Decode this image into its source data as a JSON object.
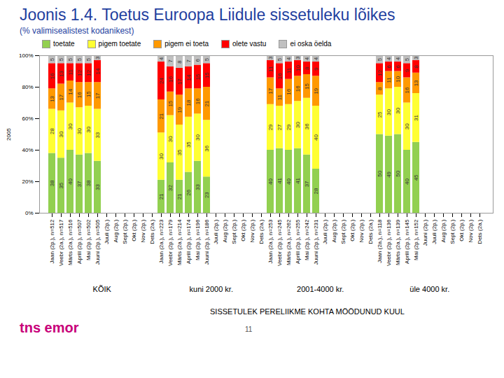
{
  "chart_data": {
    "type": "bar",
    "title": "Joonis 1.4. Toetus Euroopa Liidule sissetuleku lõikes",
    "subtitle": "(% valimisealistest kodanikest)",
    "ylabel": "2005",
    "xlabel": "SISSETULEK PERELIIKME KOHTA MÖÖDUNUD KUUL",
    "group_labels": [
      "KÕIK",
      "kuni 2000 kr.",
      "2001-4000 kr.",
      "üle 4000 kr."
    ],
    "categories": [
      "Jaan (2p.), n=512",
      "Veebr (2a.), n=517",
      "Märts (2a.), n=516",
      "Aprill (2p.), n=507",
      "Mai (2p.), n=502",
      "Juuni (2p.), n=505",
      "Juuli (2p.)",
      "Aug (2p.)",
      "Sept (2p.)",
      "Okt (2p.)",
      "Nov (2p.)",
      "Dets (2a.)",
      "Jaan (2a.), n=223",
      "Veebr (2p.), n=179",
      "Märts (2a.), n=214",
      "Aprill (2p.), n=174",
      "Mai (2p.), n=196",
      "Juuni (2p.), n=186",
      "Juuli (2p.)",
      "Aug (2p.)",
      "Sept (2p.)",
      "Okt (2p.)",
      "Nov (2p.)",
      "Dets (2a.)",
      "Jaan (2a.), n=253",
      "Veebr (2p.), n=245",
      "Märts (2a.), n=262",
      "Aprill (2p.), n=255",
      "Mai (2p.), n=242",
      "Juuni (2p.), n=231",
      "Juuli (2p.)",
      "Aug (2p.)",
      "Sept (2p.)",
      "Okt (2p.)",
      "Nov (2p.)",
      "Dets (2a.)",
      "Jaan (2a.), n=118",
      "Veebr (2p.), n=136",
      "Märts (2a.), n=139",
      "Aprill (2p.), n=145",
      "Mai (2p.), n=152",
      "Juuni (2p.)",
      "Juuli (2p.)",
      "Aug (2p.)",
      "Sept (2p.)",
      "Okt (2p.)",
      "Nov (2p.)",
      "Dets (2a.)"
    ],
    "series": [
      {
        "name": "toetate",
        "color": "#92d050",
        "values": [
          38,
          35,
          40,
          37,
          38,
          33,
          null,
          null,
          null,
          null,
          null,
          null,
          21,
          32,
          21,
          26,
          33,
          23,
          null,
          null,
          null,
          null,
          null,
          null,
          40,
          41,
          40,
          41,
          37,
          28,
          null,
          null,
          null,
          null,
          null,
          null,
          50,
          49,
          50,
          40,
          45,
          null,
          null,
          null,
          null,
          null,
          null,
          null
        ]
      },
      {
        "name": "pigem toetate",
        "color": "#ffff33",
        "values": [
          28,
          30,
          30,
          30,
          30,
          33,
          null,
          null,
          null,
          null,
          null,
          null,
          30,
          30,
          35,
          35,
          30,
          36,
          null,
          null,
          null,
          null,
          null,
          null,
          29,
          27,
          29,
          30,
          36,
          40,
          null,
          null,
          null,
          null,
          null,
          null,
          25,
          30,
          30,
          30,
          31,
          null,
          null,
          null,
          null,
          null,
          null,
          null
        ]
      },
      {
        "name": "pigem ei toeta",
        "color": "#ff9900",
        "values": [
          13,
          17,
          14,
          16,
          15,
          17,
          null,
          null,
          null,
          null,
          null,
          null,
          21,
          15,
          19,
          18,
          16,
          21,
          null,
          null,
          null,
          null,
          null,
          null,
          17,
          11,
          16,
          16,
          15,
          19,
          null,
          null,
          null,
          null,
          null,
          null,
          8,
          11,
          10,
          16,
          13,
          null,
          null,
          null,
          null,
          null,
          null,
          null
        ]
      },
      {
        "name": "olete vastu",
        "color": "#ff0000",
        "values": [
          16,
          13,
          11,
          12,
          12,
          14,
          null,
          null,
          null,
          null,
          null,
          null,
          24,
          16,
          17,
          14,
          15,
          15,
          null,
          null,
          null,
          null,
          null,
          null,
          11,
          16,
          11,
          10,
          8,
          9,
          null,
          null,
          null,
          null,
          null,
          null,
          12,
          6,
          6,
          9,
          8,
          null,
          null,
          null,
          null,
          null,
          null,
          null
        ]
      },
      {
        "name": "ei oska öelda",
        "color": "#c0c0c0",
        "values": [
          5,
          5,
          5,
          5,
          5,
          3,
          null,
          null,
          null,
          null,
          null,
          null,
          4,
          7,
          8,
          7,
          6,
          5,
          null,
          null,
          null,
          null,
          null,
          null,
          3,
          5,
          4,
          3,
          4,
          4,
          null,
          null,
          null,
          null,
          null,
          null,
          5,
          4,
          4,
          5,
          3,
          null,
          null,
          null,
          null,
          null,
          null,
          null
        ]
      }
    ],
    "ylim": [
      0,
      100
    ],
    "yticks": [
      {
        "value": 0,
        "label": "0%"
      },
      {
        "value": 20,
        "label": "20%"
      },
      {
        "value": 40,
        "label": "40%"
      },
      {
        "value": 60,
        "label": "60%"
      },
      {
        "value": 80,
        "label": "80%"
      },
      {
        "value": 100,
        "label": "100%"
      }
    ],
    "stacked": true,
    "data_labels": true,
    "grid": false,
    "legend": "top",
    "source": "tns emor",
    "page": "11"
  }
}
